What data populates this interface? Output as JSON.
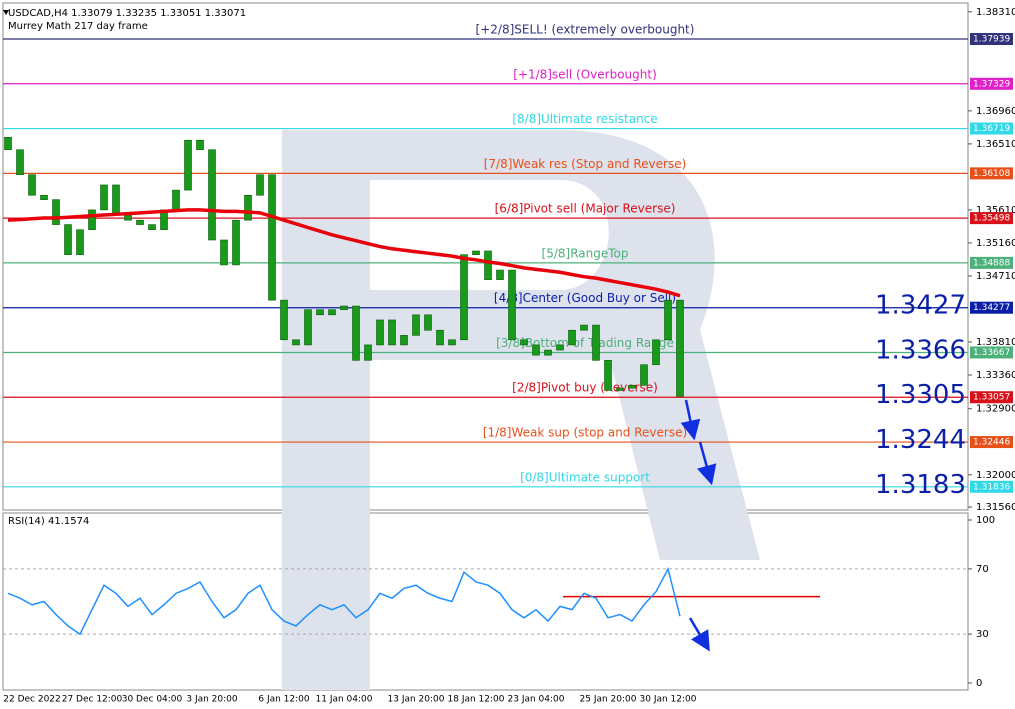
{
  "header": {
    "symbol_line": "USDCAD,H4  1.33079 1.33235 1.33051 1.33071",
    "indicator": "Murrey Math 217 day frame"
  },
  "chart_data": [
    {
      "type": "candlestick",
      "categories": [
        null,
        null,
        "22 Dec 2022",
        null,
        null,
        null,
        null,
        "27 Dec 12:00",
        null,
        null,
        null,
        null,
        "30 Dec 04:00",
        null,
        null,
        null,
        null,
        "3 Jan 20:00",
        null,
        null,
        null,
        null,
        null,
        "6 Jan 12:00",
        null,
        null,
        null,
        null,
        "11 Jan 04:00",
        null,
        null,
        null,
        null,
        null,
        "13 Jan 20:00",
        null,
        null,
        null,
        null,
        "18 Jan 12:00",
        null,
        null,
        null,
        null,
        "23 Jan 04:00",
        null,
        null,
        null,
        null,
        null,
        "25 Jan 20:00",
        null,
        null,
        null,
        null,
        "30 Jan 12:00",
        null
      ],
      "open": [
        1.366,
        1.3643,
        1.3609,
        1.3581,
        1.3575,
        1.3541,
        1.35,
        1.3534,
        1.3561,
        1.3595,
        1.3554,
        1.3547,
        1.3541,
        1.3534,
        1.3561,
        1.3588,
        1.3656,
        1.3643,
        1.352,
        1.3486,
        1.3547,
        1.3581,
        1.3609,
        1.3438,
        1.3384,
        1.3377,
        1.3425,
        1.3418,
        1.3425,
        1.343,
        1.3356,
        1.3377,
        1.3411,
        1.3377,
        1.339,
        1.3418,
        1.3397,
        1.3377,
        1.3384,
        1.35,
        1.3505,
        1.3466,
        1.3479,
        1.3384,
        1.3377,
        1.3363,
        1.337,
        1.3377,
        1.3397,
        1.3404,
        1.3356,
        1.3315,
        1.3318,
        1.3322,
        1.335,
        1.3384,
        1.3438
      ],
      "close": [
        1.3643,
        1.3609,
        1.3581,
        1.3575,
        1.3541,
        1.35,
        1.3534,
        1.3561,
        1.3595,
        1.3554,
        1.3547,
        1.3541,
        1.3534,
        1.3561,
        1.3588,
        1.3656,
        1.3643,
        1.352,
        1.3486,
        1.3547,
        1.3581,
        1.3609,
        1.3438,
        1.3384,
        1.3377,
        1.3425,
        1.3418,
        1.3425,
        1.343,
        1.3356,
        1.3377,
        1.3411,
        1.3377,
        1.339,
        1.3418,
        1.3397,
        1.3377,
        1.3384,
        1.35,
        1.3505,
        1.3466,
        1.3479,
        1.3384,
        1.3377,
        1.3363,
        1.337,
        1.3377,
        1.3397,
        1.3404,
        1.3356,
        1.3315,
        1.3318,
        1.3322,
        1.335,
        1.3384,
        1.3438,
        1.3307
      ],
      "color": "#1a9a1a",
      "ma": {
        "color": "#e8000b",
        "values": [
          1.3547,
          1.3548,
          1.3549,
          1.355,
          1.355,
          1.3551,
          1.3552,
          1.3553,
          1.3554,
          1.3555,
          1.3556,
          1.3557,
          1.3558,
          1.3559,
          1.356,
          1.3561,
          1.3561,
          1.356,
          1.3559,
          1.3559,
          1.3558,
          1.3557,
          1.3552,
          1.3547,
          1.3542,
          1.3537,
          1.3532,
          1.3527,
          1.3523,
          1.3519,
          1.3515,
          1.3511,
          1.3508,
          1.3506,
          1.3504,
          1.3502,
          1.35,
          1.3498,
          1.3495,
          1.3493,
          1.349,
          1.3488,
          1.3485,
          1.3482,
          1.348,
          1.3478,
          1.3476,
          1.3473,
          1.347,
          1.3468,
          1.3465,
          1.3462,
          1.3459,
          1.3456,
          1.3453,
          1.3449,
          1.3444
        ]
      },
      "ylim": [
        1.3152,
        1.3843
      ],
      "yticks": [
        {
          "value": 1.3831,
          "label": "1.38310"
        },
        {
          "value": 1.3696,
          "label": "1.36960"
        },
        {
          "value": 1.3651,
          "label": "1.36510"
        },
        {
          "value": 1.3561,
          "label": "1.35610"
        },
        {
          "value": 1.3516,
          "label": "1.35160"
        },
        {
          "value": 1.3471,
          "label": "1.34710"
        },
        {
          "value": 1.3381,
          "label": "1.33810"
        },
        {
          "value": 1.3336,
          "label": "1.33360"
        },
        {
          "value": 1.329,
          "label": "1.32900"
        },
        {
          "value": 1.32,
          "label": "1.32000"
        },
        {
          "value": 1.3156,
          "label": "1.31560"
        }
      ],
      "levels": [
        {
          "label": "[+2/8]SELL! (extremely overbought)",
          "value": 1.37939,
          "color": "#32327a"
        },
        {
          "label": "[+1/8]sell (Overbought)",
          "value": 1.37329,
          "color": "#e020c8"
        },
        {
          "label": "[8/8]Ultimate resistance",
          "value": 1.36719,
          "color": "#30d8e8"
        },
        {
          "label": "[7/8]Weak res (Stop and Reverse)",
          "value": 1.36108,
          "color": "#e8501a"
        },
        {
          "label": "[6/8]Pivot sell (Major Reverse)",
          "value": 1.35498,
          "color": "#d8101a"
        },
        {
          "label": "[5/8]RangeTop",
          "value": 1.34888,
          "color": "#4cb07a"
        },
        {
          "label": "[4/8]Center (Good Buy or Sell)",
          "value": 1.34277,
          "color": "#0a1ea8"
        },
        {
          "label": "[3/8]Bottom of Trading Range",
          "value": 1.33667,
          "color": "#4cb07a"
        },
        {
          "label": "[2/8]Pivot buy (Reverse)",
          "value": 1.33057,
          "color": "#d8101a"
        },
        {
          "label": "[1/8]Weak sup (stop and Reverse)",
          "value": 1.32446,
          "color": "#e8501a"
        },
        {
          "label": "[0/8]Ultimate support",
          "value": 1.31836,
          "color": "#30d8e8"
        }
      ],
      "targets": [
        1.3427,
        1.3366,
        1.3305,
        1.3244,
        1.3183
      ]
    },
    {
      "type": "line",
      "title": "RSI(14) 41.1574",
      "values": [
        55,
        52,
        48,
        50,
        42,
        35,
        30,
        45,
        60,
        55,
        47,
        52,
        42,
        48,
        55,
        58,
        62,
        50,
        40,
        45,
        55,
        60,
        45,
        38,
        35,
        42,
        48,
        45,
        48,
        40,
        45,
        55,
        52,
        58,
        60,
        55,
        52,
        50,
        68,
        62,
        60,
        55,
        45,
        40,
        45,
        38,
        47,
        45,
        55,
        52,
        40,
        42,
        38,
        48,
        56,
        70,
        41
      ],
      "color": "#1e90ff",
      "ylim": [
        0,
        100
      ],
      "yticks": [
        100,
        70,
        30,
        0
      ],
      "dotted_levels": [
        70,
        30
      ],
      "annotation_line": {
        "value": 53,
        "color": "#e00000"
      }
    }
  ]
}
